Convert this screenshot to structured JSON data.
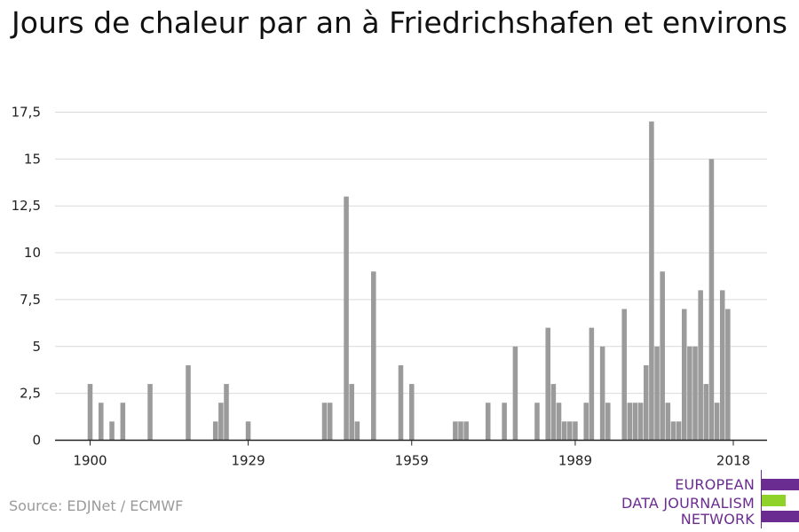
{
  "title": "Jours de chaleur par an à Friedrichshafen et environs",
  "source": "Source: EDJNet / ECMWF",
  "logo": {
    "lines": [
      "EUROPEAN",
      "DATA JOURNALISM",
      "NETWORK"
    ],
    "colors": {
      "purple": "#6b2c91",
      "green": "#8ed22a"
    }
  },
  "colors": {
    "bar": "#9b9b9b",
    "grid": "#d9d9d9",
    "axis": "#222222"
  },
  "chart_data": {
    "type": "bar",
    "title": "Jours de chaleur par an à Friedrichshafen et environs",
    "xlabel": "",
    "ylabel": "",
    "x_range": [
      1900,
      2018
    ],
    "ylim": [
      0,
      17.5
    ],
    "y_ticks": [
      "0",
      "2,5",
      "5",
      "7,5",
      "10",
      "12,5",
      "15",
      "17,5"
    ],
    "y_tick_values": [
      0,
      2.5,
      5,
      7.5,
      10,
      12.5,
      15,
      17.5
    ],
    "x_ticks": [
      "1900",
      "1929",
      "1959",
      "1989",
      "2018"
    ],
    "x_tick_values": [
      1900,
      1929,
      1959,
      1989,
      2018
    ],
    "grid": "horizontal",
    "x": [
      1900,
      1902,
      1904,
      1906,
      1911,
      1918,
      1923,
      1924,
      1925,
      1929,
      1943,
      1944,
      1947,
      1948,
      1949,
      1952,
      1957,
      1959,
      1967,
      1968,
      1969,
      1973,
      1976,
      1978,
      1982,
      1984,
      1985,
      1986,
      1987,
      1988,
      1989,
      1991,
      1992,
      1994,
      1995,
      1998,
      1999,
      2000,
      2001,
      2002,
      2003,
      2004,
      2005,
      2006,
      2007,
      2008,
      2009,
      2010,
      2011,
      2012,
      2013,
      2014,
      2015,
      2016,
      2017,
      2018
    ],
    "values": [
      3,
      2,
      1,
      2,
      3,
      4,
      1,
      2,
      3,
      1,
      2,
      2,
      13,
      3,
      1,
      9,
      4,
      3,
      1,
      1,
      1,
      2,
      2,
      5,
      2,
      6,
      3,
      2,
      1,
      1,
      1,
      2,
      6,
      5,
      2,
      7,
      2,
      2,
      2,
      4,
      17,
      5,
      9,
      2,
      1,
      1,
      7,
      5,
      5,
      8,
      3,
      15,
      2,
      8,
      7,
      0
    ]
  }
}
